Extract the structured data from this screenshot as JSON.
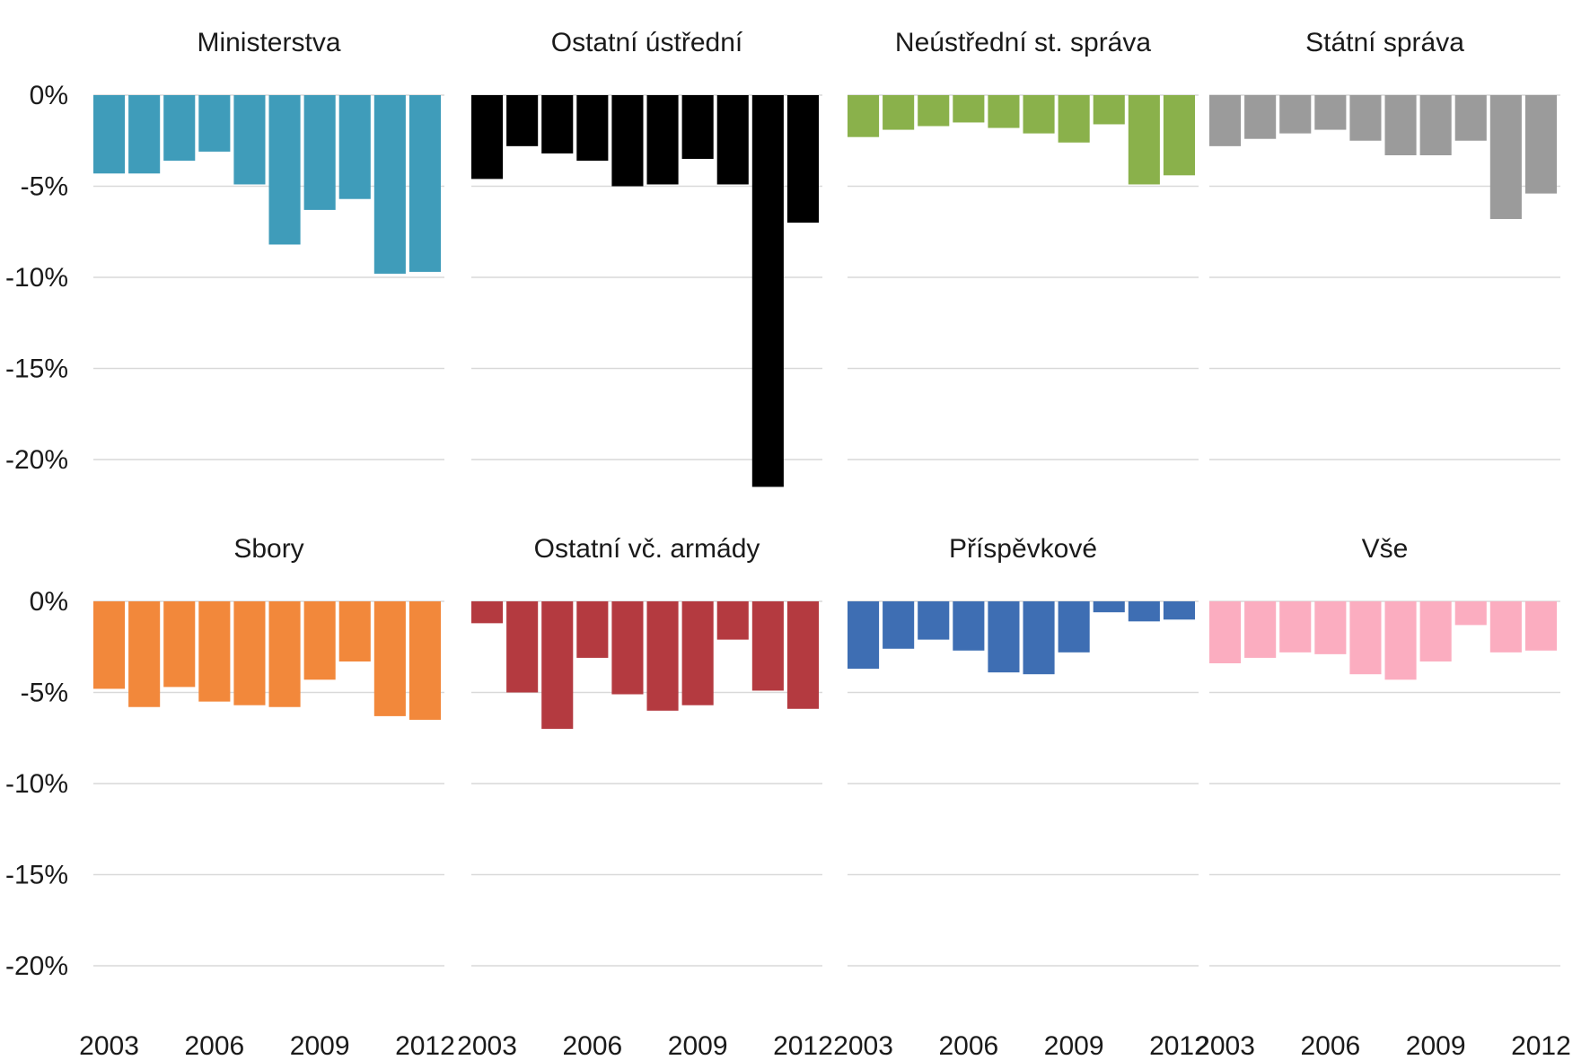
{
  "chart_data": {
    "type": "bar",
    "layout": "small-multiples",
    "x_tick_labels": [
      "2003",
      "2006",
      "2009",
      "2012"
    ],
    "y_tick_labels": [
      "0%",
      "-5%",
      "-10%",
      "-15%",
      "-20%"
    ],
    "ylim": [
      -21.5,
      0
    ],
    "grid": true,
    "x": [
      2003,
      2004,
      2005,
      2006,
      2007,
      2008,
      2009,
      2010,
      2011,
      2012
    ],
    "panels": [
      {
        "title": "Ministerstva",
        "color": "#3f9cba",
        "values": [
          -4.3,
          -4.3,
          -3.6,
          -3.1,
          -4.9,
          -8.2,
          -6.3,
          -5.7,
          -9.8,
          -9.7
        ]
      },
      {
        "title": "Ostatní ústřední",
        "color": "#000000",
        "values": [
          -4.6,
          -2.8,
          -3.2,
          -3.6,
          -5.0,
          -4.9,
          -3.5,
          -4.9,
          -21.5,
          -7.0
        ]
      },
      {
        "title": "Neústřední st. správa",
        "color": "#8ab14b",
        "values": [
          -2.3,
          -1.9,
          -1.7,
          -1.5,
          -1.8,
          -2.1,
          -2.6,
          -1.6,
          -4.9,
          -4.4
        ]
      },
      {
        "title": "Státní správa",
        "color": "#9b9b9b",
        "values": [
          -2.8,
          -2.4,
          -2.1,
          -1.9,
          -2.5,
          -3.3,
          -3.3,
          -2.5,
          -6.8,
          -5.4
        ]
      },
      {
        "title": "Sbory",
        "color": "#f2883b",
        "values": [
          -4.8,
          -5.8,
          -4.7,
          -5.5,
          -5.7,
          -5.8,
          -4.3,
          -3.3,
          -6.3,
          -6.5
        ]
      },
      {
        "title": "Ostatní vč. armády",
        "color": "#b43a40",
        "values": [
          -1.2,
          -5.0,
          -7.0,
          -3.1,
          -5.1,
          -6.0,
          -5.7,
          -2.1,
          -4.9,
          -5.9
        ]
      },
      {
        "title": "Příspěvkové",
        "color": "#3e6eb3",
        "values": [
          -3.7,
          -2.6,
          -2.1,
          -2.7,
          -3.9,
          -4.0,
          -2.8,
          -0.6,
          -1.1,
          -1.0
        ]
      },
      {
        "title": "Vše",
        "color": "#fbadc0",
        "values": [
          -3.4,
          -3.1,
          -2.8,
          -2.9,
          -4.0,
          -4.3,
          -3.3,
          -1.3,
          -2.8,
          -2.7
        ]
      }
    ]
  }
}
